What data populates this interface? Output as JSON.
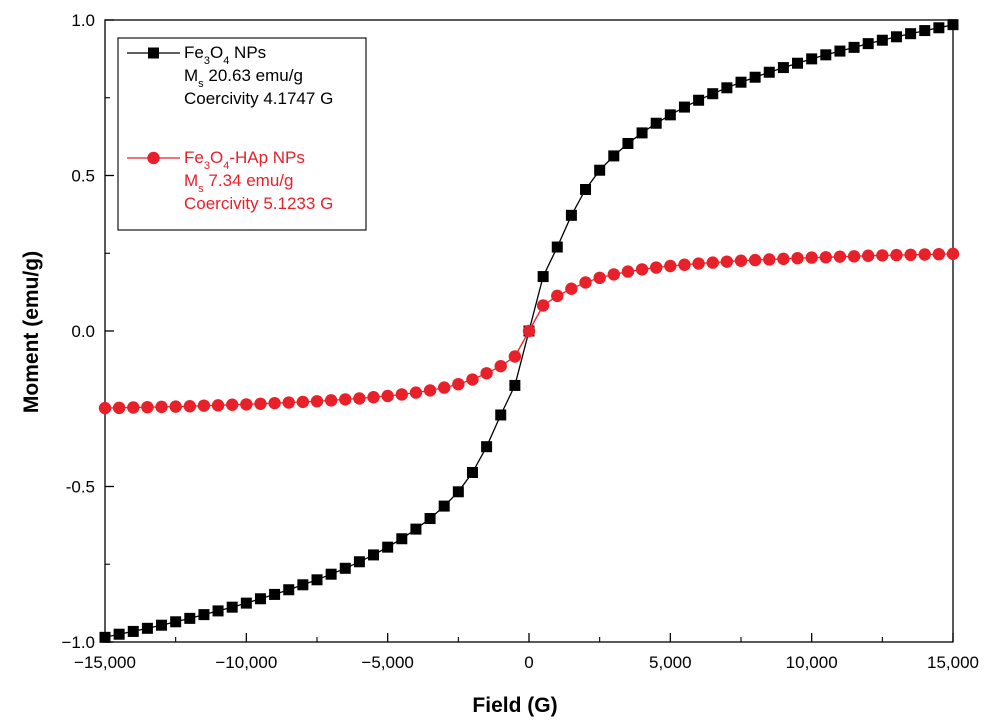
{
  "chart_data": {
    "type": "scatter",
    "xlabel": "Field (G)",
    "ylabel": "Moment (emu/g)",
    "xlim": [
      -15000,
      15000
    ],
    "ylim": [
      -1.0,
      1.0
    ],
    "x_ticks": [
      -15000,
      -10000,
      -5000,
      0,
      5000,
      10000,
      15000
    ],
    "x_tick_labels": [
      "−15,000",
      "−10,000",
      "−5,000",
      "0",
      "5,000",
      "10,000",
      "15,000"
    ],
    "y_ticks": [
      -1.0,
      -0.5,
      0.0,
      0.5,
      1.0
    ],
    "y_tick_labels": [
      "−1.0",
      "-0.5",
      "0.0",
      "0.5",
      "1.0"
    ],
    "grid": false,
    "legend_position": "top-left",
    "series": [
      {
        "key": "fe3o4",
        "marker": "square",
        "color": "#000000",
        "legend": {
          "name_parts": [
            [
              "Fe",
              ""
            ],
            [
              "3",
              "sub"
            ],
            [
              "O",
              ""
            ],
            [
              "4",
              "sub"
            ],
            [
              " NPs",
              ""
            ]
          ],
          "line2_parts": [
            [
              "M",
              ""
            ],
            [
              "s",
              "sub"
            ],
            [
              " 20.63 emu/g",
              ""
            ]
          ],
          "line3": "Coercivity 4.1747 G"
        },
        "x": [
          -15000,
          -14500,
          -14000,
          -13500,
          -13000,
          -12500,
          -12000,
          -11500,
          -11000,
          -10500,
          -10000,
          -9500,
          -9000,
          -8500,
          -8000,
          -7500,
          -7000,
          -6500,
          -6000,
          -5500,
          -5000,
          -4500,
          -4000,
          -3500,
          -3000,
          -2500,
          -2000,
          -1500,
          -1000,
          -500,
          0,
          500,
          1000,
          1500,
          2000,
          2500,
          3000,
          3500,
          4000,
          4500,
          5000,
          5500,
          6000,
          6500,
          7000,
          7500,
          8000,
          8500,
          9000,
          9500,
          10000,
          10500,
          11000,
          11500,
          12000,
          12500,
          13000,
          13500,
          14000,
          14500,
          15000
        ],
        "y": [
          -0.985,
          -0.975,
          -0.966,
          -0.956,
          -0.946,
          -0.935,
          -0.924,
          -0.912,
          -0.9,
          -0.888,
          -0.875,
          -0.861,
          -0.847,
          -0.832,
          -0.816,
          -0.8,
          -0.782,
          -0.763,
          -0.742,
          -0.72,
          -0.695,
          -0.668,
          -0.637,
          -0.603,
          -0.563,
          -0.517,
          -0.455,
          -0.372,
          -0.27,
          -0.175,
          0.0,
          0.175,
          0.27,
          0.372,
          0.455,
          0.517,
          0.563,
          0.603,
          0.637,
          0.668,
          0.695,
          0.72,
          0.742,
          0.763,
          0.782,
          0.8,
          0.816,
          0.832,
          0.847,
          0.861,
          0.875,
          0.888,
          0.9,
          0.912,
          0.924,
          0.935,
          0.946,
          0.956,
          0.966,
          0.975,
          0.985
        ]
      },
      {
        "key": "fe3o4_hap",
        "marker": "circle",
        "color": "#e8202a",
        "legend": {
          "name_parts": [
            [
              "Fe",
              ""
            ],
            [
              "3",
              "sub"
            ],
            [
              "O",
              ""
            ],
            [
              "4",
              "sub"
            ],
            [
              "-HAp NPs",
              ""
            ]
          ],
          "line2_parts": [
            [
              "M",
              ""
            ],
            [
              "s",
              "sub"
            ],
            [
              " 7.34 emu/g",
              ""
            ]
          ],
          "line3": "Coercivity 5.1233 G"
        },
        "x": [
          -15000,
          -14500,
          -14000,
          -13500,
          -13000,
          -12500,
          -12000,
          -11500,
          -11000,
          -10500,
          -10000,
          -9500,
          -9000,
          -8500,
          -8000,
          -7500,
          -7000,
          -6500,
          -6000,
          -5500,
          -5000,
          -4500,
          -4000,
          -3500,
          -3000,
          -2500,
          -2000,
          -1500,
          -1000,
          -500,
          0,
          500,
          1000,
          1500,
          2000,
          2500,
          3000,
          3500,
          4000,
          4500,
          5000,
          5500,
          6000,
          6500,
          7000,
          7500,
          8000,
          8500,
          9000,
          9500,
          10000,
          10500,
          11000,
          11500,
          12000,
          12500,
          13000,
          13500,
          14000,
          14500,
          15000
        ],
        "y": [
          -0.248,
          -0.247,
          -0.246,
          -0.245,
          -0.244,
          -0.243,
          -0.242,
          -0.24,
          -0.239,
          -0.237,
          -0.236,
          -0.234,
          -0.232,
          -0.23,
          -0.228,
          -0.226,
          -0.223,
          -0.22,
          -0.217,
          -0.213,
          -0.209,
          -0.204,
          -0.198,
          -0.191,
          -0.182,
          -0.171,
          -0.156,
          -0.136,
          -0.113,
          -0.082,
          0.0,
          0.082,
          0.113,
          0.136,
          0.156,
          0.171,
          0.182,
          0.191,
          0.198,
          0.204,
          0.209,
          0.213,
          0.217,
          0.22,
          0.223,
          0.226,
          0.228,
          0.23,
          0.232,
          0.234,
          0.236,
          0.237,
          0.239,
          0.24,
          0.242,
          0.243,
          0.244,
          0.245,
          0.246,
          0.247,
          0.248
        ]
      }
    ]
  }
}
